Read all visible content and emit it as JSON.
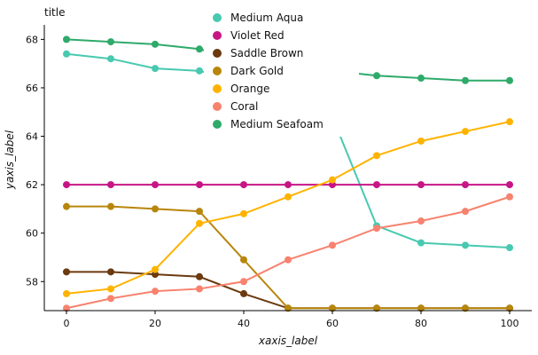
{
  "chart_data": {
    "type": "line",
    "title": "title",
    "xlabel": "xaxis_label",
    "ylabel": "yaxis_label",
    "xlim": [
      -5,
      105
    ],
    "ylim": [
      56.8,
      68.6
    ],
    "xticks": [
      0,
      20,
      40,
      60,
      80,
      100
    ],
    "yticks": [
      58,
      60,
      62,
      64,
      66,
      68
    ],
    "legend_position": "top-center",
    "series": [
      {
        "name": "Medium Aqua",
        "color": "#48c9b0",
        "x": [
          0,
          10,
          20,
          30,
          40,
          50,
          60,
          70,
          80,
          90,
          100
        ],
        "y": [
          67.4,
          67.2,
          66.8,
          66.7,
          66.2,
          65.9,
          64.8,
          60.3,
          59.6,
          59.5,
          59.4
        ]
      },
      {
        "name": "Violet Red",
        "color": "#c71585",
        "x": [
          0,
          10,
          20,
          30,
          40,
          50,
          60,
          70,
          80,
          90,
          100
        ],
        "y": [
          62.0,
          62.0,
          62.0,
          62.0,
          62.0,
          62.0,
          62.0,
          62.0,
          62.0,
          62.0,
          62.0
        ]
      },
      {
        "name": "Saddle Brown",
        "color": "#6b3a0f",
        "x": [
          0,
          10,
          20,
          30,
          40,
          50,
          60,
          70,
          80,
          90,
          100
        ],
        "y": [
          58.4,
          58.4,
          58.3,
          58.2,
          57.5,
          56.9,
          56.9,
          56.9,
          56.9,
          56.9,
          56.9
        ]
      },
      {
        "name": "Dark Gold",
        "color": "#b8860b",
        "x": [
          0,
          10,
          20,
          30,
          40,
          50,
          60,
          70,
          80,
          90,
          100
        ],
        "y": [
          61.1,
          61.1,
          61.0,
          60.9,
          58.9,
          56.9,
          56.9,
          56.9,
          56.9,
          56.9,
          56.9
        ]
      },
      {
        "name": "Orange",
        "color": "#ffb300",
        "x": [
          0,
          10,
          20,
          30,
          40,
          50,
          60,
          70,
          80,
          90,
          100
        ],
        "y": [
          57.5,
          57.7,
          58.5,
          60.4,
          60.8,
          61.5,
          62.2,
          63.2,
          63.8,
          64.2,
          64.6
        ]
      },
      {
        "name": "Coral",
        "color": "#f7826e",
        "x": [
          0,
          10,
          20,
          30,
          40,
          50,
          60,
          70,
          80,
          90,
          100
        ],
        "y": [
          56.9,
          57.3,
          57.6,
          57.7,
          58.0,
          58.9,
          59.5,
          60.2,
          60.5,
          60.9,
          61.5
        ]
      },
      {
        "name": "Medium Seafoam",
        "color": "#2eaa6a",
        "x": [
          0,
          10,
          20,
          30,
          40,
          50,
          60,
          70,
          80,
          90,
          100
        ],
        "y": [
          68.0,
          67.9,
          67.8,
          67.6,
          67.1,
          66.9,
          66.7,
          66.5,
          66.4,
          66.3,
          66.3
        ]
      }
    ]
  }
}
